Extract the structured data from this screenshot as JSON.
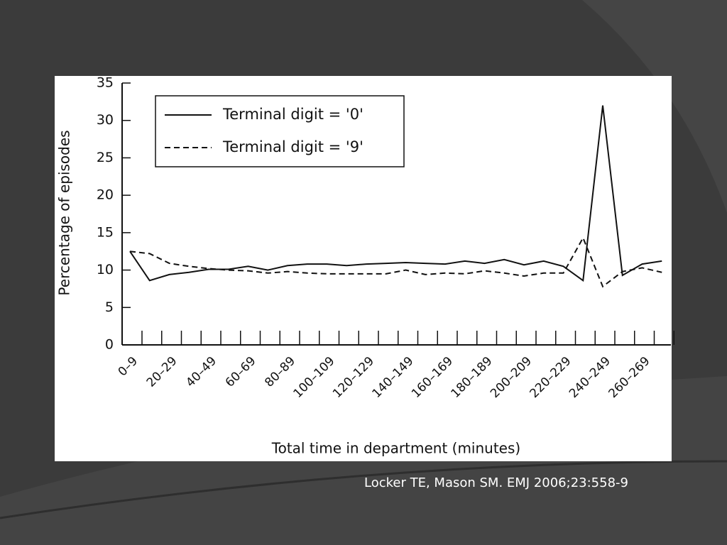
{
  "caption": "Locker TE, Mason SM. EMJ 2006;23:558-9",
  "chart_data": {
    "type": "line",
    "y_label": "Percentage of episodes",
    "x_label": "Total time in department (minutes)",
    "categories": [
      "0–9",
      null,
      "20–29",
      null,
      "40–49",
      null,
      "60–69",
      null,
      "80–89",
      null,
      "100–109",
      null,
      "120–129",
      null,
      "140–149",
      null,
      "160–169",
      null,
      "180–189",
      null,
      "200–209",
      null,
      "220–229",
      null,
      "240–249",
      null,
      "260–269",
      null
    ],
    "series": [
      {
        "name": "Terminal digit = '0'",
        "color": "#111111",
        "dash": "solid",
        "values": [
          12.5,
          8.6,
          9.4,
          9.7,
          10.1,
          10.1,
          10.5,
          10.0,
          10.6,
          10.8,
          10.8,
          10.6,
          10.8,
          10.9,
          11.0,
          10.9,
          10.8,
          11.2,
          10.9,
          11.4,
          10.7,
          11.2,
          10.5,
          8.6,
          32,
          9.3,
          10.8,
          11.2
        ]
      },
      {
        "name": "Terminal digit = '9'",
        "color": "#111111",
        "dash": "dashed",
        "values": [
          12.5,
          12.2,
          10.9,
          10.5,
          10.2,
          10.0,
          9.9,
          9.6,
          9.8,
          9.6,
          9.5,
          9.5,
          9.5,
          9.5,
          10.0,
          9.4,
          9.6,
          9.5,
          9.9,
          9.6,
          9.2,
          9.6,
          9.6,
          14.3,
          7.8,
          9.8,
          10.3,
          9.7
        ]
      }
    ],
    "ylim": [
      0,
      35
    ],
    "yticks": [
      0,
      5,
      10,
      15,
      20,
      25,
      30,
      35
    ],
    "grid": false,
    "legend": "upper left"
  }
}
